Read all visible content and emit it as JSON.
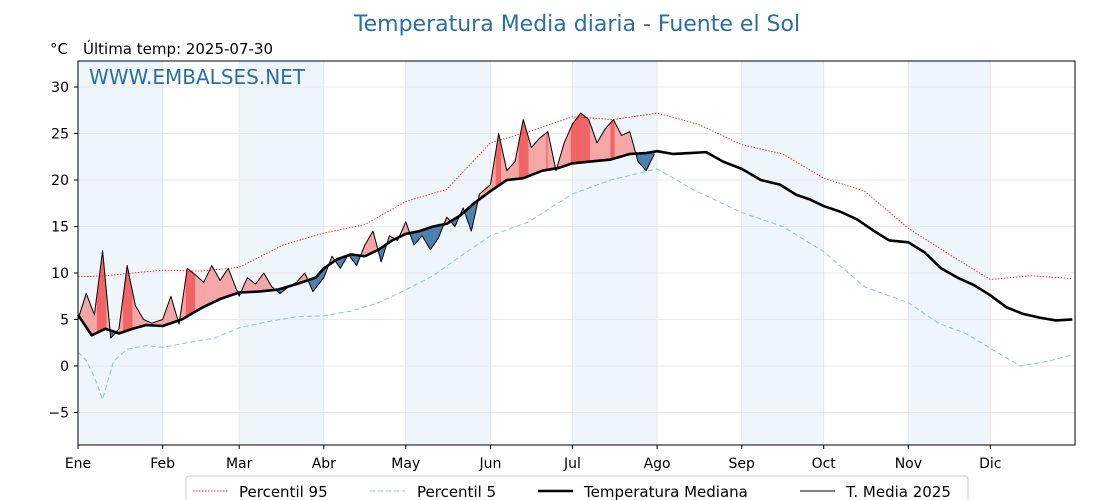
{
  "chart_data": {
    "type": "line",
    "title": "Temperatura Media diaria - Fuente el Sol",
    "unit_label": "°C",
    "last_temp_label": "Última temp: 2025-07-30",
    "watermark": "WWW.EMBALSES.NET",
    "ylim": [
      -8.5,
      32.8
    ],
    "yticks": [
      -5,
      0,
      5,
      10,
      15,
      20,
      25,
      30
    ],
    "ytick_labels": [
      "−5",
      "0",
      "5",
      "10",
      "15",
      "20",
      "25",
      "30"
    ],
    "x_range_days": [
      0,
      365
    ],
    "months": [
      "Ene",
      "Feb",
      "Mar",
      "Abr",
      "May",
      "Jun",
      "Jul",
      "Ago",
      "Sep",
      "Oct",
      "Nov",
      "Dic"
    ],
    "month_start_days": [
      0,
      31,
      59,
      90,
      120,
      151,
      181,
      212,
      243,
      273,
      304,
      334
    ],
    "grid": true,
    "legend_position": "bottom-center",
    "colors": {
      "p95": "#e8271f",
      "p5": "#8ec3db",
      "median": "#000000",
      "current": "#000000",
      "above": "#f4a6a6",
      "above_strong": "#f06464",
      "below": "#4f7fac",
      "shade": "#eef5fb",
      "title": "#2b6ea4"
    },
    "series": [
      {
        "name": "Percentil 95",
        "style": "dotted",
        "x": [
          0,
          10,
          20,
          31,
          45,
          59,
          75,
          90,
          105,
          120,
          135,
          151,
          166,
          181,
          196,
          212,
          227,
          243,
          258,
          273,
          288,
          304,
          319,
          334,
          349,
          364
        ],
        "values": [
          9.6,
          9.7,
          10.0,
          10.3,
          10.2,
          10.6,
          13.0,
          14.3,
          15.2,
          17.7,
          19.0,
          24.0,
          25.3,
          26.8,
          26.5,
          27.2,
          26.0,
          23.8,
          22.8,
          20.2,
          18.8,
          14.8,
          12.0,
          9.3,
          9.7,
          9.4
        ]
      },
      {
        "name": "Percentil 5",
        "style": "dashed",
        "x": [
          0,
          3,
          6,
          9,
          13,
          18,
          25,
          31,
          40,
          50,
          59,
          70,
          80,
          90,
          100,
          110,
          120,
          130,
          140,
          151,
          165,
          181,
          195,
          212,
          225,
          243,
          258,
          273,
          288,
          304,
          315,
          325,
          334,
          345,
          355,
          364
        ],
        "values": [
          1.5,
          0.6,
          -1.2,
          -3.6,
          0.5,
          1.8,
          2.2,
          2.0,
          2.5,
          3.0,
          4.1,
          4.8,
          5.3,
          5.4,
          5.9,
          6.8,
          8.2,
          9.7,
          11.8,
          14.0,
          15.5,
          18.5,
          20.0,
          21.2,
          19.0,
          16.5,
          15.0,
          12.3,
          8.5,
          6.8,
          4.6,
          3.5,
          1.9,
          0.0,
          0.5,
          1.2
        ]
      },
      {
        "name": "Temperatura Mediana",
        "style": "solid-thick",
        "x": [
          0,
          5,
          10,
          15,
          20,
          25,
          31,
          38,
          45,
          52,
          59,
          66,
          73,
          80,
          87,
          90,
          95,
          100,
          105,
          110,
          115,
          120,
          125,
          130,
          135,
          140,
          145,
          151,
          157,
          163,
          170,
          176,
          181,
          188,
          195,
          202,
          208,
          212,
          218,
          224,
          230,
          236,
          243,
          250,
          257,
          263,
          268,
          273,
          279,
          285,
          291,
          297,
          304,
          310,
          316,
          322,
          328,
          334,
          340,
          346,
          352,
          358,
          364
        ],
        "values": [
          5.5,
          3.3,
          4.0,
          3.5,
          4.0,
          4.4,
          4.3,
          5.0,
          6.2,
          7.2,
          7.9,
          8.0,
          8.2,
          8.8,
          9.5,
          10.5,
          11.5,
          12.0,
          11.8,
          12.5,
          13.5,
          14.2,
          14.5,
          15.0,
          15.3,
          16.2,
          17.5,
          18.8,
          20.0,
          20.2,
          21.0,
          21.3,
          21.8,
          22.0,
          22.2,
          22.8,
          22.9,
          23.1,
          22.8,
          22.9,
          23.0,
          22.0,
          21.2,
          20.0,
          19.5,
          18.4,
          17.9,
          17.2,
          16.6,
          15.8,
          14.6,
          13.5,
          13.3,
          12.2,
          10.5,
          9.5,
          8.7,
          7.6,
          6.3,
          5.6,
          5.2,
          4.9,
          5.0
        ]
      },
      {
        "name": "T. Media 2025",
        "style": "solid-thin",
        "x": [
          0,
          3,
          6,
          9,
          12,
          15,
          18,
          21,
          24,
          27,
          31,
          34,
          37,
          40,
          43,
          46,
          49,
          52,
          55,
          59,
          62,
          65,
          68,
          71,
          74,
          77,
          80,
          83,
          86,
          90,
          93,
          96,
          99,
          102,
          105,
          108,
          111,
          114,
          117,
          120,
          123,
          126,
          129,
          132,
          135,
          138,
          141,
          144,
          147,
          151,
          154,
          157,
          160,
          163,
          166,
          169,
          172,
          175,
          178,
          181,
          184,
          187,
          190,
          193,
          196,
          199,
          202,
          205,
          208,
          211
        ],
        "values": [
          5.0,
          7.8,
          5.5,
          12.4,
          3.0,
          4.0,
          10.8,
          6.5,
          5.0,
          4.6,
          5.0,
          7.5,
          4.5,
          10.5,
          9.8,
          9.0,
          10.8,
          9.2,
          10.5,
          7.5,
          9.5,
          8.8,
          10.0,
          8.5,
          7.8,
          8.5,
          9.0,
          10.0,
          8.0,
          9.5,
          11.8,
          10.5,
          12.0,
          10.8,
          13.0,
          14.5,
          11.2,
          14.0,
          13.5,
          15.5,
          13.0,
          14.0,
          12.5,
          13.8,
          16.0,
          15.0,
          17.0,
          14.5,
          18.5,
          19.5,
          25.0,
          21.0,
          22.0,
          26.5,
          23.5,
          24.5,
          25.2,
          21.0,
          24.0,
          26.0,
          27.2,
          26.5,
          24.0,
          25.5,
          26.5,
          24.8,
          25.2,
          22.0,
          21.0,
          22.8
        ]
      }
    ]
  }
}
